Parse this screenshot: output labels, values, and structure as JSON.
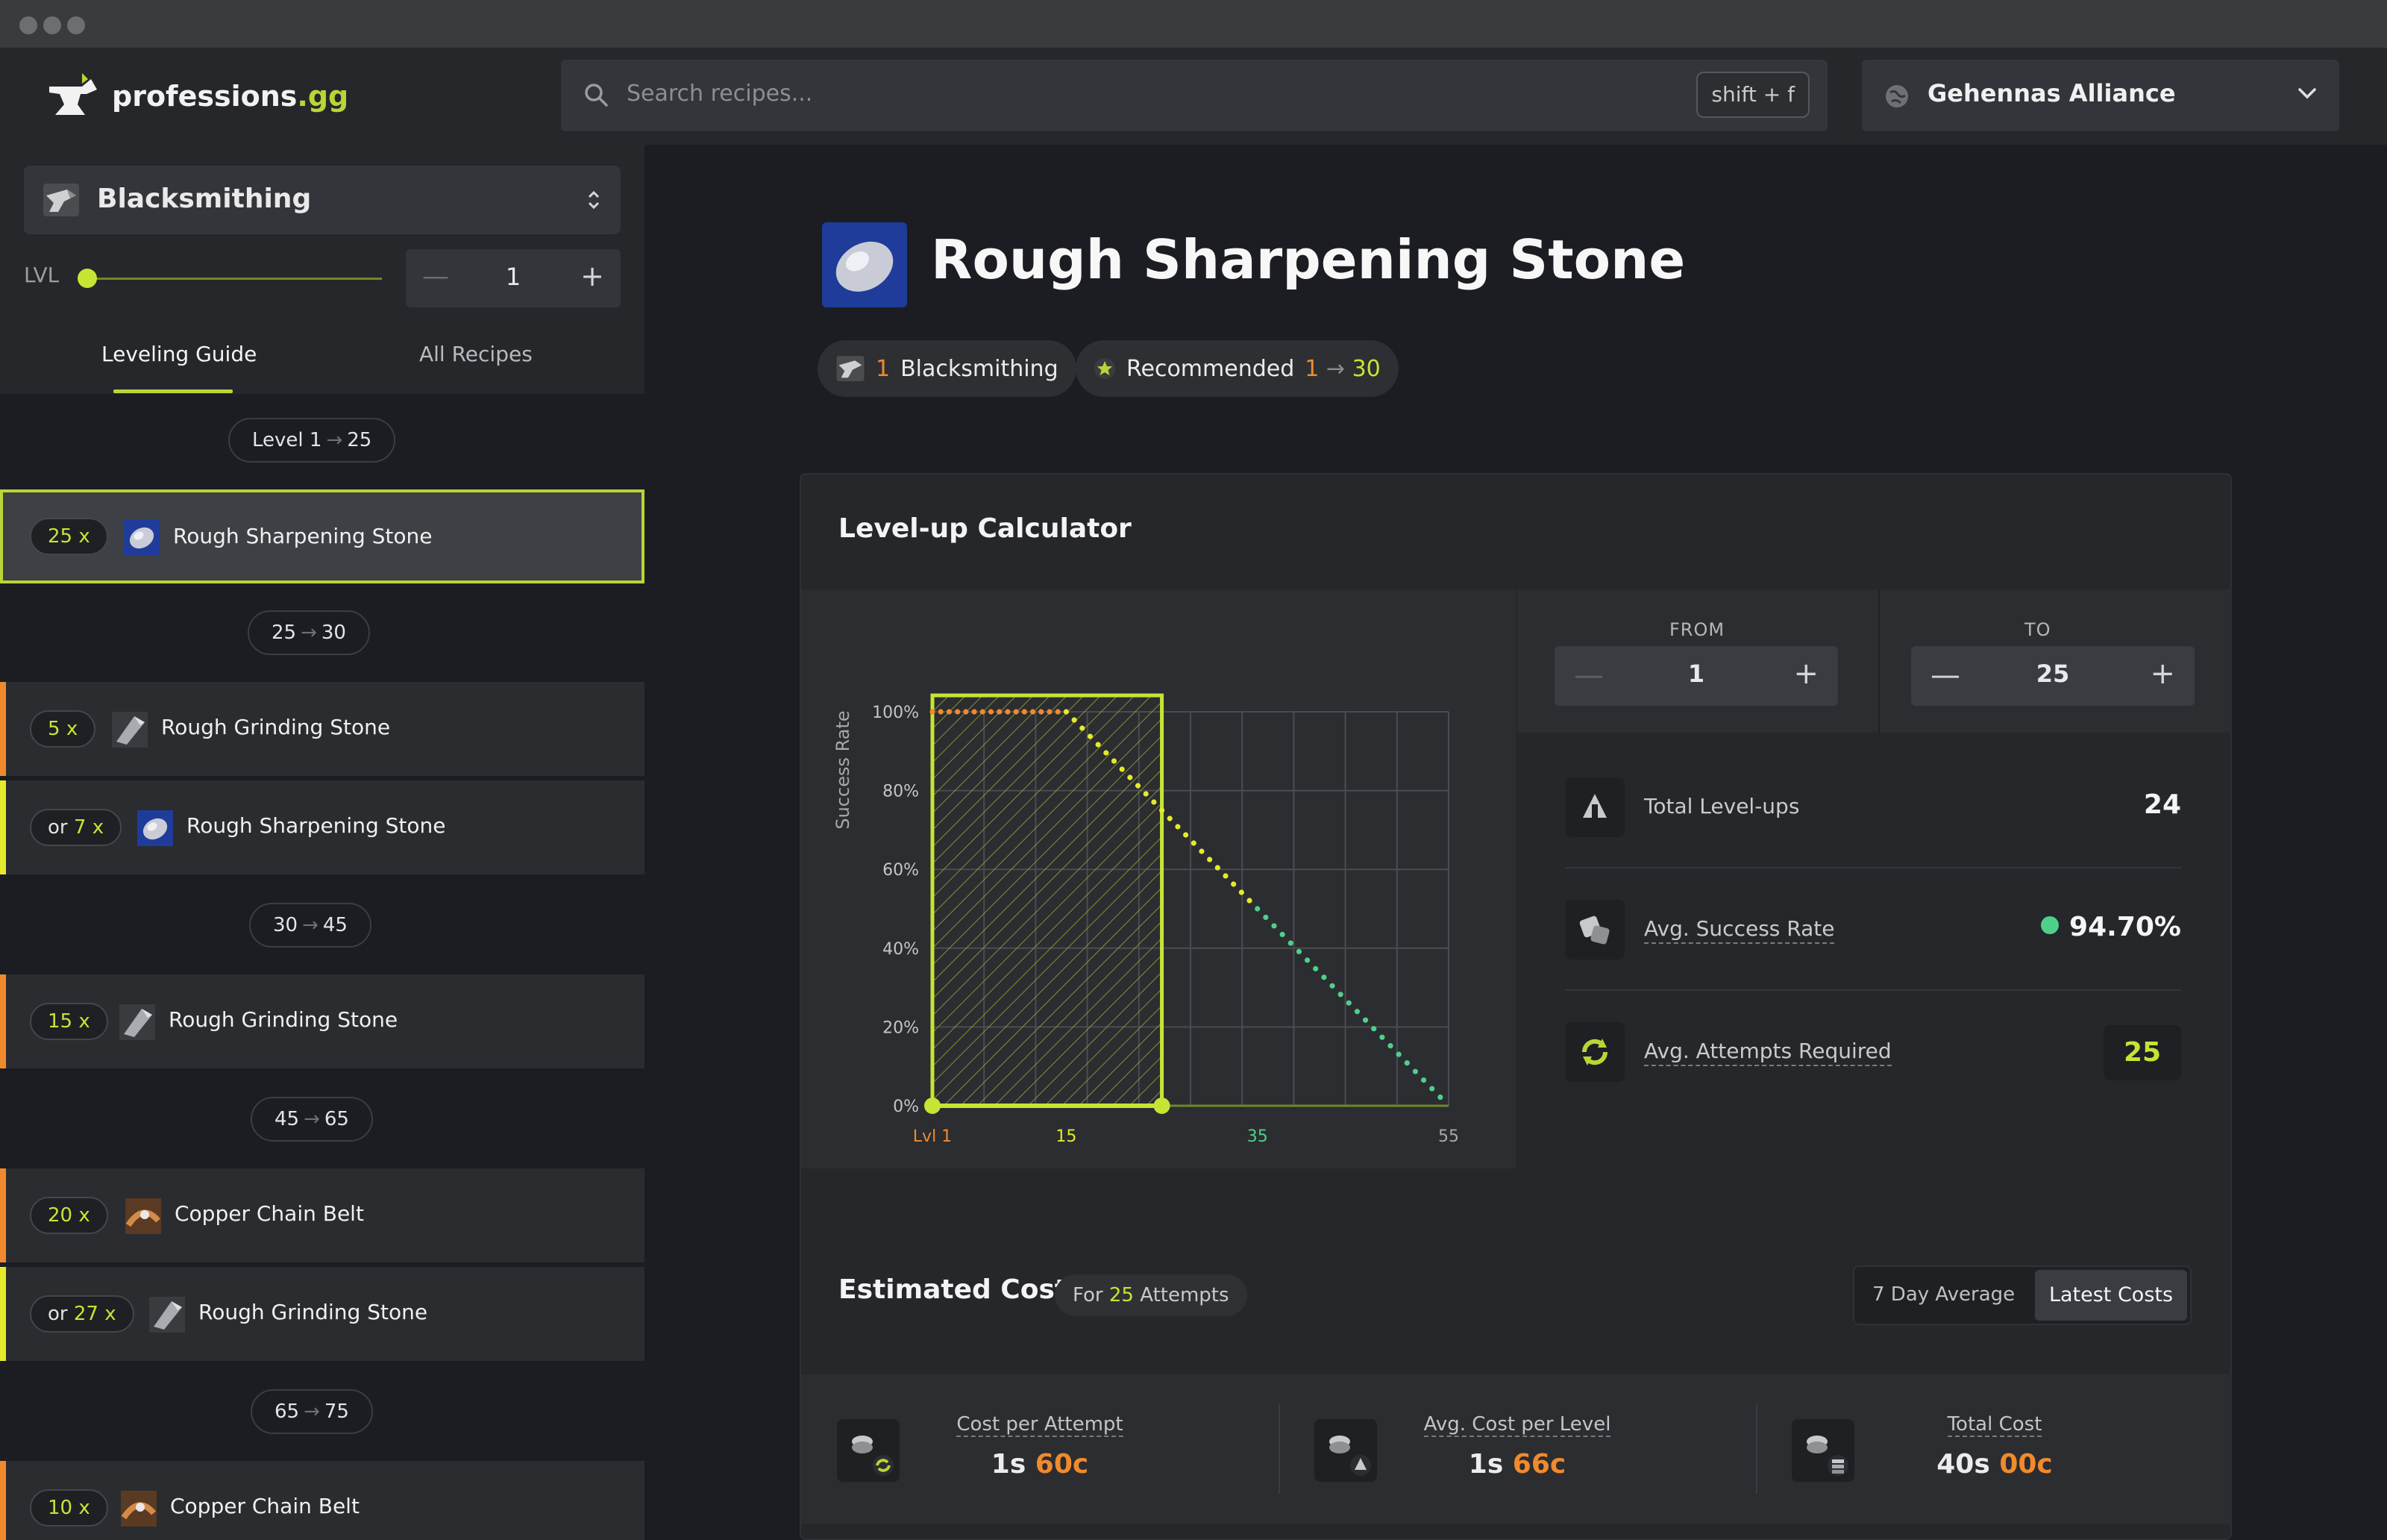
{
  "app": {
    "logo_prefix": "professions",
    "logo_suffix": ".gg"
  },
  "search": {
    "placeholder": "Search recipes...",
    "shortcut": "shift + f"
  },
  "realm": {
    "name": "Gehennas Alliance"
  },
  "sidebar": {
    "profession": "Blacksmithing",
    "lvl_label": "LVL",
    "level": "1",
    "tabs": [
      "Leveling Guide",
      "All Recipes"
    ],
    "ranges": [
      {
        "from": "Level 1",
        "to": "25"
      },
      {
        "from": "25",
        "to": "30"
      },
      {
        "from": "30",
        "to": "45"
      },
      {
        "from": "45",
        "to": "65"
      },
      {
        "from": "65",
        "to": "75"
      }
    ],
    "items": [
      {
        "prefix": "",
        "qty": "25",
        "name": "Rough Sharpening Stone",
        "icon": "sharpening-stone-icon"
      },
      {
        "prefix": "",
        "qty": "5",
        "name": "Rough Grinding Stone",
        "icon": "grinding-stone-icon"
      },
      {
        "prefix": "or",
        "qty": "7",
        "name": "Rough Sharpening Stone",
        "icon": "sharpening-stone-icon"
      },
      {
        "prefix": "",
        "qty": "15",
        "name": "Rough Grinding Stone",
        "icon": "grinding-stone-icon"
      },
      {
        "prefix": "",
        "qty": "20",
        "name": "Copper Chain Belt",
        "icon": "chain-belt-icon"
      },
      {
        "prefix": "or",
        "qty": "27",
        "name": "Rough Grinding Stone",
        "icon": "grinding-stone-icon"
      },
      {
        "prefix": "",
        "qty": "10",
        "name": "Copper Chain Belt",
        "icon": "chain-belt-icon"
      }
    ],
    "qty_suffix": "x"
  },
  "recipe": {
    "title": "Rough Sharpening Stone",
    "skill_req": "1",
    "profession": "Blacksmithing",
    "recommended_label": "Recommended",
    "rec_from": "1",
    "rec_to": "30"
  },
  "calculator": {
    "title": "Level-up Calculator",
    "from_label": "FROM",
    "to_label": "TO",
    "from": "1",
    "to": "25",
    "stats": [
      {
        "label": "Total Level-ups",
        "value": "24"
      },
      {
        "label": "Avg. Success Rate",
        "value": "94.70%"
      },
      {
        "label": "Avg. Attempts Required",
        "value": "25"
      }
    ]
  },
  "chart_data": {
    "type": "line",
    "ylabel": "Success Rate",
    "x_ticks": [
      "Lvl 1",
      "15",
      "35",
      "55"
    ],
    "y_ticks": [
      "0%",
      "20%",
      "40%",
      "60%",
      "80%",
      "100%"
    ],
    "xlim": [
      1,
      55
    ],
    "ylim": [
      0,
      100
    ],
    "highlight_range": [
      1,
      25
    ],
    "series": [
      {
        "x": [
          1,
          15,
          25,
          35,
          55
        ],
        "y": [
          100,
          100,
          75,
          50,
          0
        ]
      }
    ]
  },
  "costs": {
    "title": "Estimated Costs",
    "for_prefix": "For",
    "attempts": "25",
    "attempts_suffix": "Attempts",
    "toggle": [
      "7 Day Average",
      "Latest Costs"
    ],
    "items": [
      {
        "label": "Cost per Attempt",
        "silver": "1s",
        "copper": "60c"
      },
      {
        "label": "Avg. Cost per Level",
        "silver": "1s",
        "copper": "66c"
      },
      {
        "label": "Total Cost",
        "silver": "40s",
        "copper": "00c"
      }
    ]
  },
  "colors": {
    "accent": "#b8d636",
    "orange": "#f08a2c",
    "yellow_bar": "#e6ea2a",
    "green_dot": "#4fd08a"
  }
}
